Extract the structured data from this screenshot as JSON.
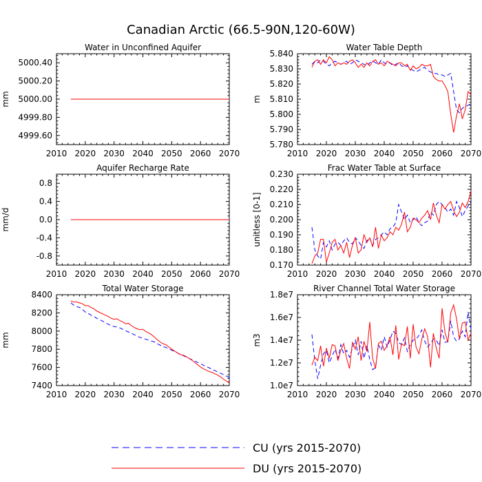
{
  "figure": {
    "title": "Canadian Arctic (66.5-90N,120-60W)"
  },
  "colors": {
    "CU": "#0000ff",
    "DU": "#ff0000"
  },
  "legend": [
    {
      "label": "CU (yrs 2015-2070)",
      "style": "dashed",
      "color": "#0000ff"
    },
    {
      "label": "DU (yrs 2015-2070)",
      "style": "solid",
      "color": "#ff0000"
    }
  ],
  "chart_data": [
    {
      "type": "line",
      "title": "Water in Unconfined Aquifer",
      "ylabel": "mm",
      "xlim": [
        2010,
        2070
      ],
      "ylim": [
        4999.5,
        5000.5
      ],
      "xticks": [
        2010,
        2020,
        2030,
        2040,
        2050,
        2060,
        2070
      ],
      "xtick_labels": [
        "2010",
        "2020",
        "2030",
        "2040",
        "2050",
        "2060",
        "2070"
      ],
      "yticks": [
        4999.6,
        4999.8,
        5000.0,
        5000.2,
        5000.4
      ],
      "ytick_labels": [
        "4999.60",
        "4999.80",
        "5000.00",
        "5000.20",
        "5000.40"
      ],
      "x": [
        2015,
        2070
      ],
      "series": [
        {
          "name": "CU",
          "values": [
            5000.0,
            5000.0
          ]
        },
        {
          "name": "DU",
          "values": [
            5000.0,
            5000.0
          ]
        }
      ]
    },
    {
      "type": "line",
      "title": "Water Table Depth",
      "ylabel": "m",
      "xlim": [
        2010,
        2070
      ],
      "ylim": [
        5.78,
        5.84
      ],
      "xticks": [
        2010,
        2020,
        2030,
        2040,
        2050,
        2060,
        2070
      ],
      "xtick_labels": [
        "2010",
        "2020",
        "2030",
        "2040",
        "2050",
        "2060",
        "2070"
      ],
      "yticks": [
        5.78,
        5.79,
        5.8,
        5.81,
        5.82,
        5.83,
        5.84
      ],
      "ytick_labels": [
        "5.780",
        "5.790",
        "5.800",
        "5.810",
        "5.820",
        "5.830",
        "5.840"
      ],
      "x": [
        2015,
        2016,
        2017,
        2018,
        2019,
        2020,
        2021,
        2022,
        2023,
        2024,
        2025,
        2026,
        2027,
        2028,
        2029,
        2030,
        2031,
        2032,
        2033,
        2034,
        2035,
        2036,
        2037,
        2038,
        2039,
        2040,
        2041,
        2042,
        2043,
        2044,
        2045,
        2046,
        2047,
        2048,
        2049,
        2050,
        2051,
        2052,
        2053,
        2054,
        2055,
        2056,
        2057,
        2058,
        2059,
        2060,
        2061,
        2062,
        2063,
        2064,
        2065,
        2066,
        2067,
        2068,
        2069,
        2070
      ],
      "series": [
        {
          "name": "CU",
          "values": [
            5.833,
            5.835,
            5.834,
            5.836,
            5.835,
            5.833,
            5.832,
            5.834,
            5.835,
            5.834,
            5.833,
            5.834,
            5.835,
            5.833,
            5.834,
            5.836,
            5.835,
            5.834,
            5.833,
            5.832,
            5.834,
            5.835,
            5.834,
            5.833,
            5.836,
            5.834,
            5.833,
            5.834,
            5.832,
            5.833,
            5.834,
            5.832,
            5.831,
            5.832,
            5.83,
            5.829,
            5.828,
            5.829,
            5.83,
            5.831,
            5.829,
            5.828,
            5.827,
            5.827,
            5.826,
            5.826,
            5.825,
            5.826,
            5.827,
            5.815,
            5.803,
            5.801,
            5.804,
            5.805,
            5.806,
            5.807
          ]
        },
        {
          "name": "DU",
          "values": [
            5.831,
            5.835,
            5.836,
            5.833,
            5.836,
            5.834,
            5.838,
            5.836,
            5.832,
            5.834,
            5.833,
            5.834,
            5.833,
            5.835,
            5.836,
            5.834,
            5.831,
            5.833,
            5.831,
            5.834,
            5.832,
            5.835,
            5.836,
            5.833,
            5.834,
            5.832,
            5.835,
            5.834,
            5.833,
            5.832,
            5.834,
            5.834,
            5.832,
            5.833,
            5.829,
            5.832,
            5.83,
            5.831,
            5.833,
            5.832,
            5.832,
            5.833,
            5.825,
            5.823,
            5.822,
            5.822,
            5.819,
            5.815,
            5.8,
            5.788,
            5.799,
            5.807,
            5.797,
            5.803,
            5.815,
            5.813
          ]
        }
      ]
    },
    {
      "type": "line",
      "title": "Aquifer Recharge Rate",
      "ylabel": "mm/d",
      "xlim": [
        2010,
        2070
      ],
      "ylim": [
        -1.0,
        1.0
      ],
      "xticks": [
        2010,
        2020,
        2030,
        2040,
        2050,
        2060,
        2070
      ],
      "xtick_labels": [
        "2010",
        "2020",
        "2030",
        "2040",
        "2050",
        "2060",
        "2070"
      ],
      "yticks": [
        -0.8,
        -0.4,
        0.0,
        0.4,
        0.8
      ],
      "ytick_labels": [
        "-0.8",
        "-0.4",
        "0.0",
        "0.4",
        "0.8"
      ],
      "x": [
        2015,
        2070
      ],
      "series": [
        {
          "name": "CU",
          "values": [
            0.0,
            0.0
          ]
        },
        {
          "name": "DU",
          "values": [
            0.0,
            0.0
          ]
        }
      ]
    },
    {
      "type": "line",
      "title": "Frac Water Table at Surface",
      "ylabel": "unitless [0-1]",
      "xlim": [
        2010,
        2070
      ],
      "ylim": [
        0.17,
        0.23
      ],
      "xticks": [
        2010,
        2020,
        2030,
        2040,
        2050,
        2060,
        2070
      ],
      "xtick_labels": [
        "2010",
        "2020",
        "2030",
        "2040",
        "2050",
        "2060",
        "2070"
      ],
      "yticks": [
        0.17,
        0.18,
        0.19,
        0.2,
        0.21,
        0.22,
        0.23
      ],
      "ytick_labels": [
        "0.170",
        "0.180",
        "0.190",
        "0.200",
        "0.210",
        "0.220",
        "0.230"
      ],
      "x": [
        2015,
        2016,
        2017,
        2018,
        2019,
        2020,
        2021,
        2022,
        2023,
        2024,
        2025,
        2026,
        2027,
        2028,
        2029,
        2030,
        2031,
        2032,
        2033,
        2034,
        2035,
        2036,
        2037,
        2038,
        2039,
        2040,
        2041,
        2042,
        2043,
        2044,
        2045,
        2046,
        2047,
        2048,
        2049,
        2050,
        2051,
        2052,
        2053,
        2054,
        2055,
        2056,
        2057,
        2058,
        2059,
        2060,
        2061,
        2062,
        2063,
        2064,
        2065,
        2066,
        2067,
        2068,
        2069,
        2070
      ],
      "series": [
        {
          "name": "CU",
          "values": [
            0.195,
            0.18,
            0.176,
            0.174,
            0.185,
            0.182,
            0.186,
            0.18,
            0.184,
            0.185,
            0.183,
            0.186,
            0.188,
            0.185,
            0.184,
            0.188,
            0.186,
            0.183,
            0.181,
            0.186,
            0.188,
            0.183,
            0.187,
            0.188,
            0.19,
            0.192,
            0.19,
            0.194,
            0.195,
            0.198,
            0.21,
            0.205,
            0.2,
            0.203,
            0.198,
            0.2,
            0.202,
            0.198,
            0.196,
            0.198,
            0.199,
            0.205,
            0.203,
            0.21,
            0.212,
            0.21,
            0.208,
            0.205,
            0.207,
            0.203,
            0.212,
            0.208,
            0.202,
            0.206,
            0.209,
            0.212
          ]
        },
        {
          "name": "DU",
          "values": [
            0.171,
            0.176,
            0.178,
            0.187,
            0.187,
            0.172,
            0.178,
            0.185,
            0.187,
            0.18,
            0.183,
            0.178,
            0.185,
            0.175,
            0.183,
            0.188,
            0.178,
            0.18,
            0.19,
            0.185,
            0.188,
            0.182,
            0.195,
            0.181,
            0.19,
            0.186,
            0.188,
            0.192,
            0.19,
            0.195,
            0.193,
            0.197,
            0.205,
            0.192,
            0.195,
            0.201,
            0.2,
            0.198,
            0.201,
            0.203,
            0.206,
            0.2,
            0.211,
            0.203,
            0.198,
            0.21,
            0.207,
            0.21,
            0.212,
            0.206,
            0.202,
            0.205,
            0.211,
            0.208,
            0.212,
            0.219
          ]
        }
      ]
    },
    {
      "type": "line",
      "title": "Total Water Storage",
      "ylabel": "mm",
      "xlim": [
        2010,
        2070
      ],
      "ylim": [
        7400,
        8400
      ],
      "xticks": [
        2010,
        2020,
        2030,
        2040,
        2050,
        2060,
        2070
      ],
      "xtick_labels": [
        "2010",
        "2020",
        "2030",
        "2040",
        "2050",
        "2060",
        "2070"
      ],
      "yticks": [
        7400,
        7600,
        7800,
        8000,
        8200,
        8400
      ],
      "ytick_labels": [
        "7400",
        "7600",
        "7800",
        "8000",
        "8200",
        "8400"
      ],
      "x": [
        2015,
        2016,
        2017,
        2018,
        2019,
        2020,
        2021,
        2022,
        2023,
        2024,
        2025,
        2026,
        2027,
        2028,
        2029,
        2030,
        2031,
        2032,
        2033,
        2034,
        2035,
        2036,
        2037,
        2038,
        2039,
        2040,
        2041,
        2042,
        2043,
        2044,
        2045,
        2046,
        2047,
        2048,
        2049,
        2050,
        2051,
        2052,
        2053,
        2054,
        2055,
        2056,
        2057,
        2058,
        2059,
        2060,
        2061,
        2062,
        2063,
        2064,
        2065,
        2066,
        2067,
        2068,
        2069,
        2070
      ],
      "series": [
        {
          "name": "CU",
          "values": [
            8310,
            8285,
            8270,
            8260,
            8240,
            8210,
            8195,
            8175,
            8160,
            8140,
            8125,
            8110,
            8090,
            8075,
            8060,
            8050,
            8045,
            8035,
            8020,
            8005,
            7990,
            7975,
            7960,
            7945,
            7930,
            7920,
            7910,
            7900,
            7890,
            7880,
            7860,
            7845,
            7830,
            7820,
            7805,
            7790,
            7775,
            7760,
            7745,
            7730,
            7715,
            7700,
            7685,
            7670,
            7655,
            7640,
            7625,
            7610,
            7595,
            7580,
            7565,
            7550,
            7535,
            7520,
            7505,
            7490
          ]
        },
        {
          "name": "DU",
          "values": [
            8330,
            8320,
            8320,
            8310,
            8300,
            8280,
            8280,
            8260,
            8245,
            8220,
            8205,
            8190,
            8175,
            8160,
            8140,
            8130,
            8135,
            8115,
            8100,
            8080,
            8085,
            8060,
            8040,
            8025,
            8015,
            8020,
            7995,
            7980,
            7960,
            7935,
            7905,
            7880,
            7860,
            7850,
            7825,
            7800,
            7780,
            7760,
            7740,
            7735,
            7720,
            7700,
            7680,
            7655,
            7630,
            7605,
            7585,
            7570,
            7555,
            7545,
            7530,
            7515,
            7495,
            7470,
            7450,
            7430
          ]
        }
      ]
    },
    {
      "type": "line",
      "title": "River Channel Total Water Storage",
      "ylabel": "m3",
      "xlim": [
        2010,
        2070
      ],
      "ylim": [
        10000000,
        18000000
      ],
      "xticks": [
        2010,
        2020,
        2030,
        2040,
        2050,
        2060,
        2070
      ],
      "xtick_labels": [
        "2010",
        "2020",
        "2030",
        "2040",
        "2050",
        "2060",
        "2070"
      ],
      "yticks": [
        10000000,
        12000000,
        14000000,
        16000000,
        18000000
      ],
      "ytick_labels": [
        "1.0e7",
        "1.2e7",
        "1.4e7",
        "1.6e7",
        "1.8e7"
      ],
      "x": [
        2015,
        2016,
        2017,
        2018,
        2019,
        2020,
        2021,
        2022,
        2023,
        2024,
        2025,
        2026,
        2027,
        2028,
        2029,
        2030,
        2031,
        2032,
        2033,
        2034,
        2035,
        2036,
        2037,
        2038,
        2039,
        2040,
        2041,
        2042,
        2043,
        2044,
        2045,
        2046,
        2047,
        2048,
        2049,
        2050,
        2051,
        2052,
        2053,
        2054,
        2055,
        2056,
        2057,
        2058,
        2059,
        2060,
        2061,
        2062,
        2063,
        2064,
        2065,
        2066,
        2067,
        2068,
        2069,
        2070
      ],
      "series": [
        {
          "name": "CU",
          "values": [
            14500000,
            12200000,
            10600000,
            11800000,
            12800000,
            13100000,
            12000000,
            12600000,
            13200000,
            12400000,
            13600000,
            12800000,
            13100000,
            12500000,
            13300000,
            14000000,
            12700000,
            13900000,
            12400000,
            13500000,
            12300000,
            11400000,
            11600000,
            13600000,
            13100000,
            14300000,
            13400000,
            14000000,
            14800000,
            14600000,
            13800000,
            13600000,
            14200000,
            13000000,
            13600000,
            14000000,
            14100000,
            14400000,
            14900000,
            13900000,
            13400000,
            13700000,
            14100000,
            14000000,
            13500000,
            14900000,
            13800000,
            13900000,
            15700000,
            14300000,
            13900000,
            14100000,
            14800000,
            14300000,
            16500000,
            15000000
          ]
        },
        {
          "name": "DU",
          "values": [
            11800000,
            12500000,
            12200000,
            13500000,
            11700000,
            13300000,
            12400000,
            13600000,
            13500000,
            12200000,
            13100000,
            13700000,
            12400000,
            11500000,
            13800000,
            13200000,
            14300000,
            12200000,
            13900000,
            13000000,
            15600000,
            12400000,
            11500000,
            13700000,
            13900000,
            13100000,
            13500000,
            14300000,
            12700000,
            15300000,
            12300000,
            13700000,
            13500000,
            15200000,
            12400000,
            15400000,
            13400000,
            12800000,
            14100000,
            15000000,
            14300000,
            11600000,
            14600000,
            13300000,
            12400000,
            16800000,
            14700000,
            13800000,
            16400000,
            17100000,
            15900000,
            14100000,
            15500000,
            15600000,
            14000000,
            14600000
          ]
        }
      ]
    }
  ]
}
